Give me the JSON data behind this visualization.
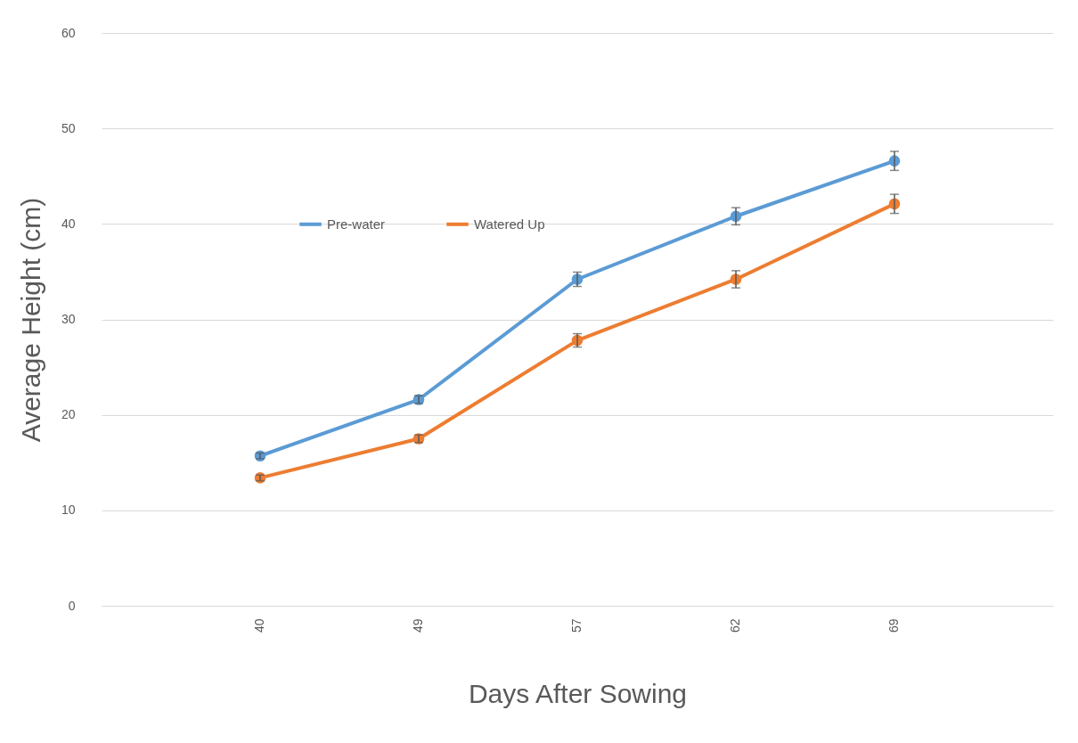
{
  "chart_data": {
    "type": "line",
    "xlabel": "Days After Sowing",
    "ylabel": "Average Height (cm)",
    "categories": [
      "40",
      "49",
      "57",
      "62",
      "69"
    ],
    "series": [
      {
        "name": "Pre-water",
        "color": "#5b9bd5",
        "values": [
          15.7,
          21.6,
          34.2,
          40.8,
          46.6
        ],
        "errors": [
          0.3,
          0.4,
          0.75,
          0.9,
          1.0
        ]
      },
      {
        "name": "Watered Up",
        "color": "#ed7d31",
        "values": [
          13.4,
          17.5,
          27.8,
          34.2,
          42.1
        ],
        "errors": [
          0.3,
          0.4,
          0.7,
          0.9,
          1.0
        ]
      }
    ],
    "ylim": [
      0,
      60
    ],
    "yticks": [
      0,
      10,
      20,
      30,
      40,
      50,
      60
    ],
    "grid": "y",
    "legend": "top",
    "marker": "circle",
    "line_style": "solid"
  }
}
